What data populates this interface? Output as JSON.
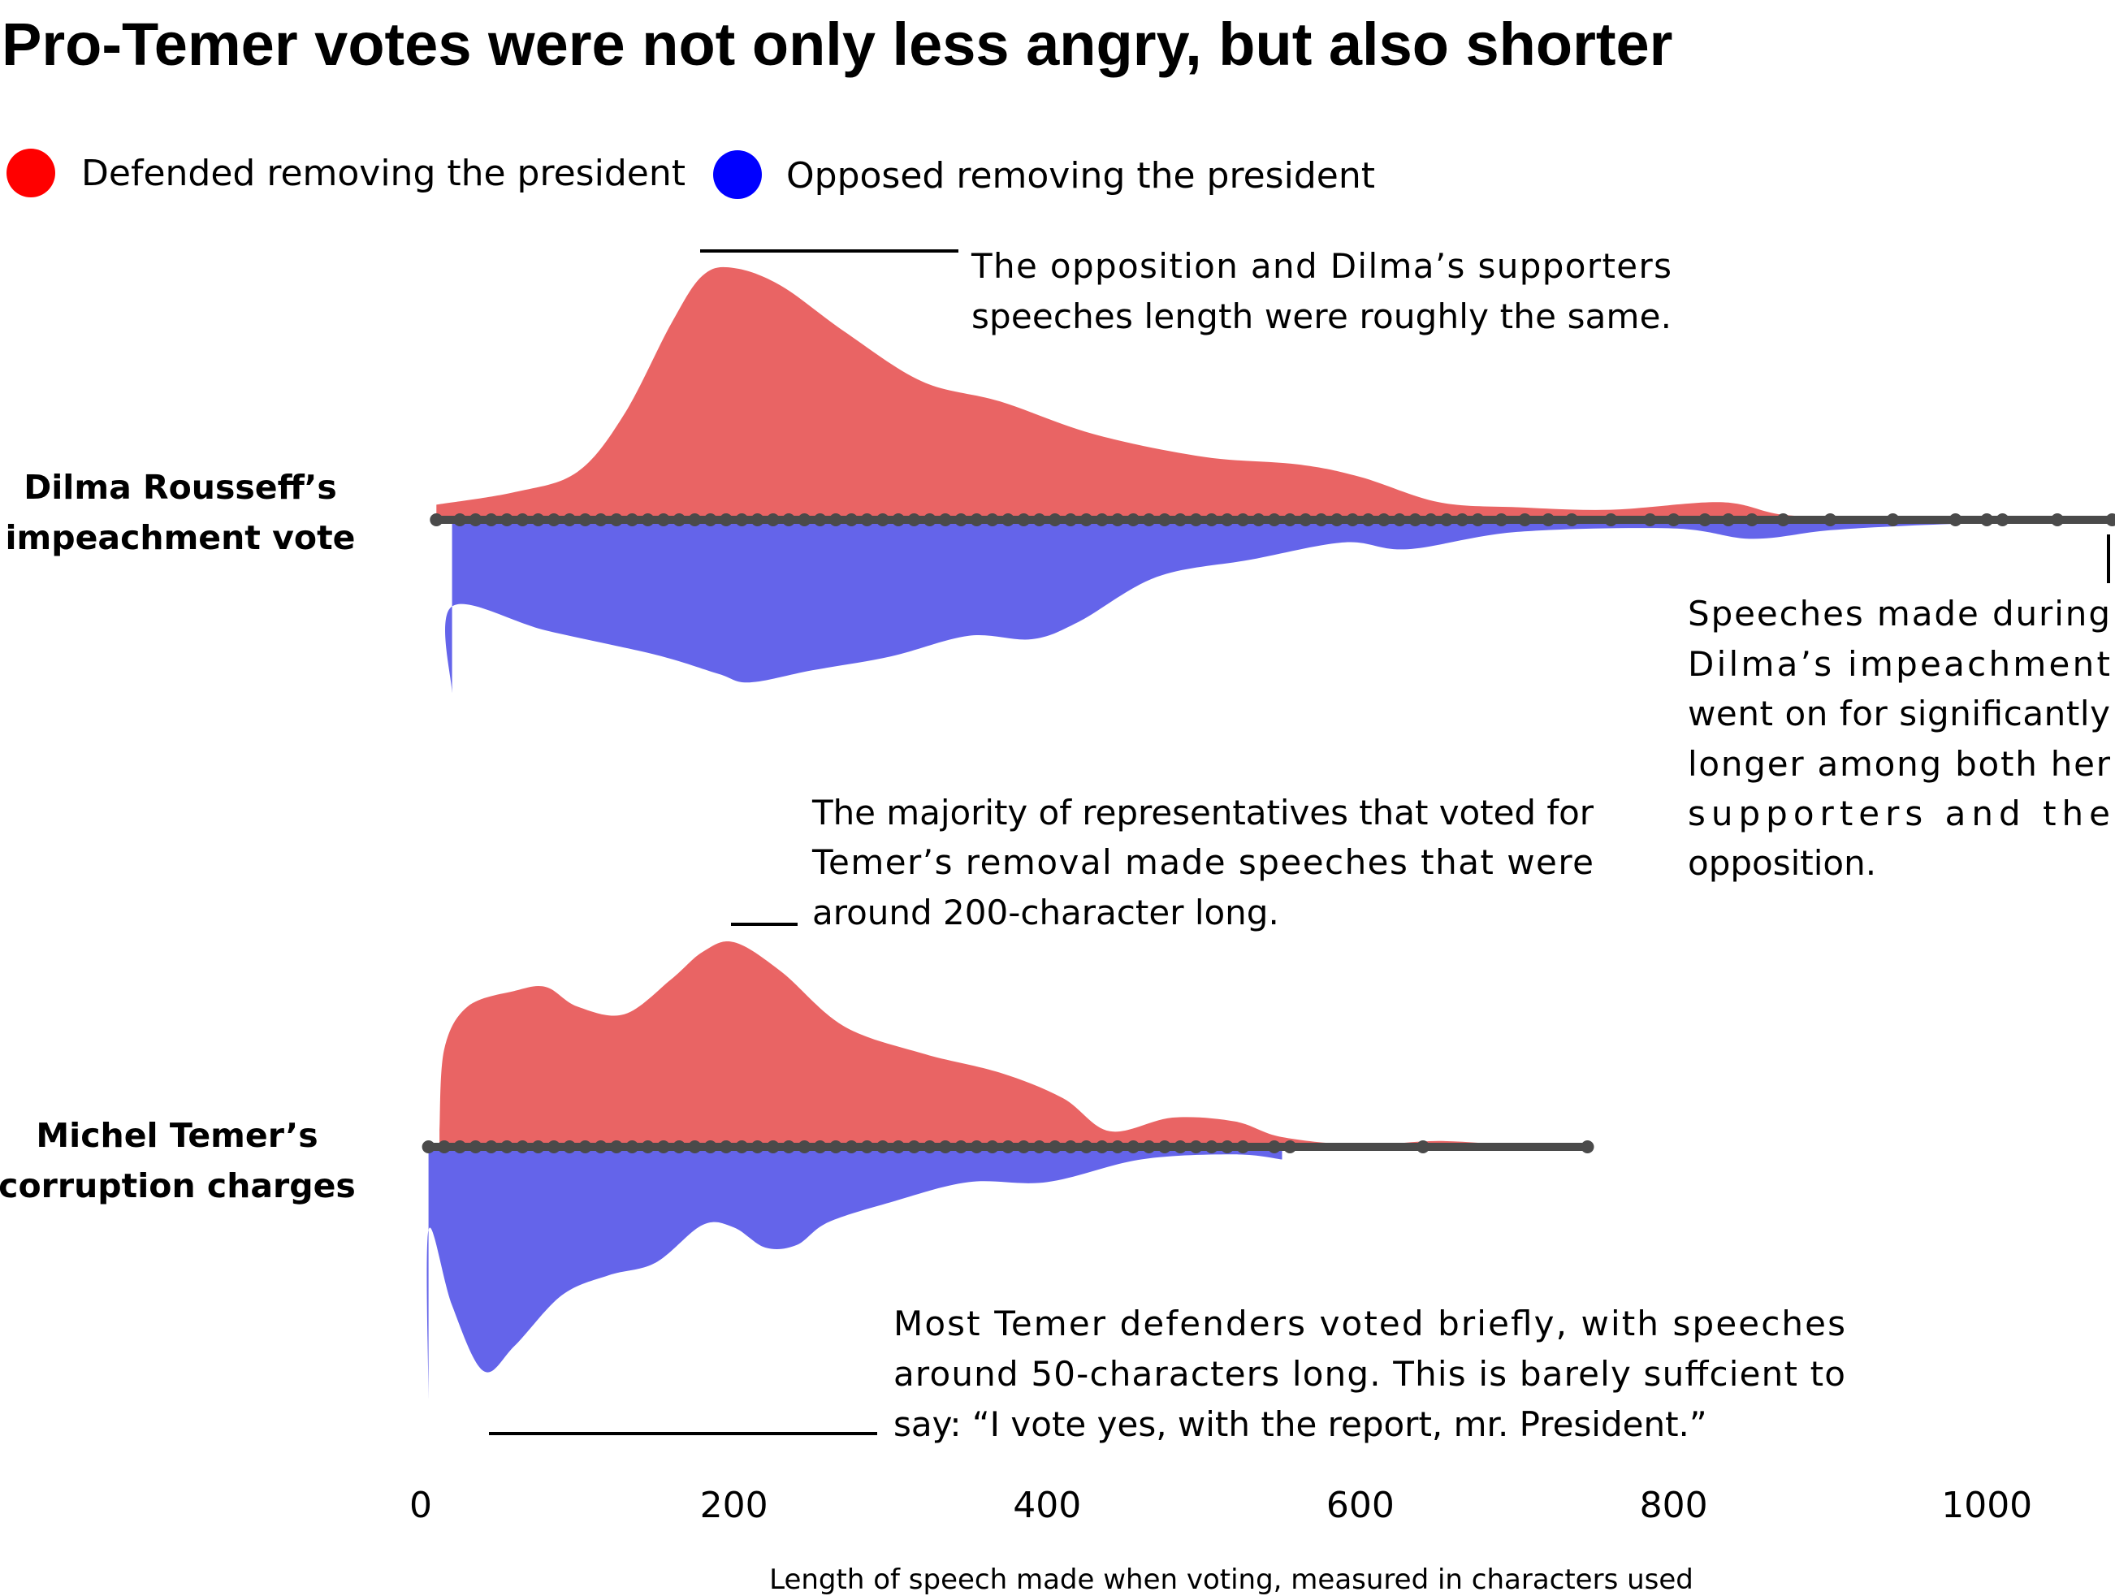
{
  "chart_data": {
    "type": "violin",
    "title": "Pro-Temer votes were not only less angry, but also shorter",
    "xlabel": "Length of speech made when voting, measured in characters used",
    "xlim": [
      0,
      1080
    ],
    "xticks": [
      0,
      200,
      400,
      600,
      800,
      1000
    ],
    "legend": {
      "placement": "top-left",
      "entries": [
        {
          "name": "Defended removing the president",
          "color": "#ff0000"
        },
        {
          "name": "Opposed removing the president",
          "color": "#0000ff"
        }
      ]
    },
    "fill_colors": {
      "defended": "#e96464",
      "opposed": "#6464ea",
      "dots": "#4a4a4a"
    },
    "groups": [
      {
        "label_lines": [
          "Dilma Rousseff’s",
          "impeachment vote"
        ],
        "defended_density": [
          [
            10,
            0.06
          ],
          [
            60,
            0.11
          ],
          [
            100,
            0.19
          ],
          [
            130,
            0.42
          ],
          [
            160,
            0.78
          ],
          [
            180,
            0.97
          ],
          [
            200,
            1.0
          ],
          [
            230,
            0.93
          ],
          [
            270,
            0.75
          ],
          [
            320,
            0.55
          ],
          [
            370,
            0.47
          ],
          [
            430,
            0.34
          ],
          [
            500,
            0.25
          ],
          [
            560,
            0.22
          ],
          [
            600,
            0.17
          ],
          [
            650,
            0.07
          ],
          [
            700,
            0.05
          ],
          [
            760,
            0.04
          ],
          [
            830,
            0.07
          ],
          [
            870,
            0.02
          ],
          [
            920,
            0.01
          ],
          [
            1000,
            0.015
          ],
          [
            1080,
            0.015
          ]
        ],
        "opposed_density": [
          [
            20,
            1.0
          ],
          [
            20,
            0.5
          ],
          [
            80,
            0.64
          ],
          [
            150,
            0.78
          ],
          [
            190,
            0.89
          ],
          [
            210,
            0.94
          ],
          [
            250,
            0.87
          ],
          [
            300,
            0.79
          ],
          [
            350,
            0.67
          ],
          [
            390,
            0.69
          ],
          [
            420,
            0.59
          ],
          [
            470,
            0.33
          ],
          [
            530,
            0.23
          ],
          [
            590,
            0.13
          ],
          [
            630,
            0.17
          ],
          [
            700,
            0.07
          ],
          [
            800,
            0.05
          ],
          [
            850,
            0.11
          ],
          [
            900,
            0.06
          ],
          [
            960,
            0.03
          ],
          [
            1010,
            0.015
          ]
        ],
        "dots": [
          10,
          25,
          35,
          45,
          55,
          65,
          75,
          85,
          95,
          105,
          115,
          125,
          135,
          145,
          155,
          165,
          175,
          185,
          195,
          205,
          215,
          225,
          235,
          245,
          255,
          265,
          275,
          285,
          295,
          305,
          315,
          325,
          335,
          345,
          355,
          365,
          375,
          385,
          395,
          405,
          415,
          425,
          435,
          445,
          455,
          465,
          475,
          485,
          495,
          505,
          515,
          525,
          535,
          545,
          555,
          565,
          575,
          585,
          595,
          605,
          615,
          625,
          635,
          645,
          655,
          665,
          675,
          690,
          705,
          720,
          735,
          760,
          785,
          800,
          820,
          835,
          850,
          870,
          900,
          940,
          980,
          1000,
          1010,
          1045,
          1080
        ]
      },
      {
        "label_lines": [
          "Michel Temer’s",
          "corruption charges"
        ],
        "defended_density": [
          [
            12,
            0.08
          ],
          [
            15,
            0.5
          ],
          [
            30,
            0.72
          ],
          [
            60,
            0.8
          ],
          [
            80,
            0.82
          ],
          [
            100,
            0.72
          ],
          [
            130,
            0.68
          ],
          [
            160,
            0.86
          ],
          [
            180,
            1.0
          ],
          [
            200,
            1.05
          ],
          [
            230,
            0.9
          ],
          [
            270,
            0.62
          ],
          [
            320,
            0.48
          ],
          [
            370,
            0.38
          ],
          [
            410,
            0.25
          ],
          [
            440,
            0.08
          ],
          [
            480,
            0.15
          ],
          [
            520,
            0.13
          ],
          [
            550,
            0.05
          ],
          [
            600,
            0.01
          ],
          [
            650,
            0.03
          ],
          [
            700,
            0.01
          ],
          [
            745,
            0.02
          ]
        ],
        "opposed_density": [
          [
            5,
            1.0
          ],
          [
            5,
            0.33
          ],
          [
            20,
            0.63
          ],
          [
            40,
            0.89
          ],
          [
            60,
            0.79
          ],
          [
            90,
            0.59
          ],
          [
            120,
            0.51
          ],
          [
            150,
            0.46
          ],
          [
            180,
            0.31
          ],
          [
            200,
            0.32
          ],
          [
            220,
            0.4
          ],
          [
            240,
            0.39
          ],
          [
            260,
            0.3
          ],
          [
            300,
            0.22
          ],
          [
            350,
            0.14
          ],
          [
            400,
            0.14
          ],
          [
            460,
            0.05
          ],
          [
            520,
            0.03
          ],
          [
            550,
            0.05
          ]
        ],
        "dots": [
          5,
          15,
          25,
          35,
          45,
          55,
          65,
          75,
          85,
          95,
          105,
          115,
          125,
          135,
          145,
          155,
          165,
          175,
          185,
          195,
          205,
          215,
          225,
          235,
          245,
          255,
          265,
          275,
          285,
          295,
          305,
          315,
          325,
          335,
          345,
          355,
          365,
          375,
          385,
          395,
          405,
          415,
          425,
          435,
          445,
          455,
          465,
          475,
          485,
          495,
          505,
          515,
          525,
          545,
          555,
          640,
          745
        ]
      }
    ],
    "annotations": [
      {
        "lines": [
          "The opposition and Dilma’s supporters",
          "speeches length were roughly the same."
        ],
        "align": "justify"
      },
      {
        "lines": [
          "Speeches made during",
          "Dilma’s impeachment",
          "went on for significantly",
          "longer among both her",
          "supporters and the",
          "opposition."
        ],
        "align": "justify"
      },
      {
        "lines": [
          "The majority of representatives that voted for",
          "Temer’s removal made speeches that were",
          "around 200-character long."
        ],
        "align": "justify"
      },
      {
        "lines": [
          "Most Temer defenders voted briefly, with speeches",
          "around 50-characters long. This is barely suffcient to",
          "say: “I vote yes, with the report, mr. President.”"
        ],
        "align": "justify"
      }
    ]
  }
}
